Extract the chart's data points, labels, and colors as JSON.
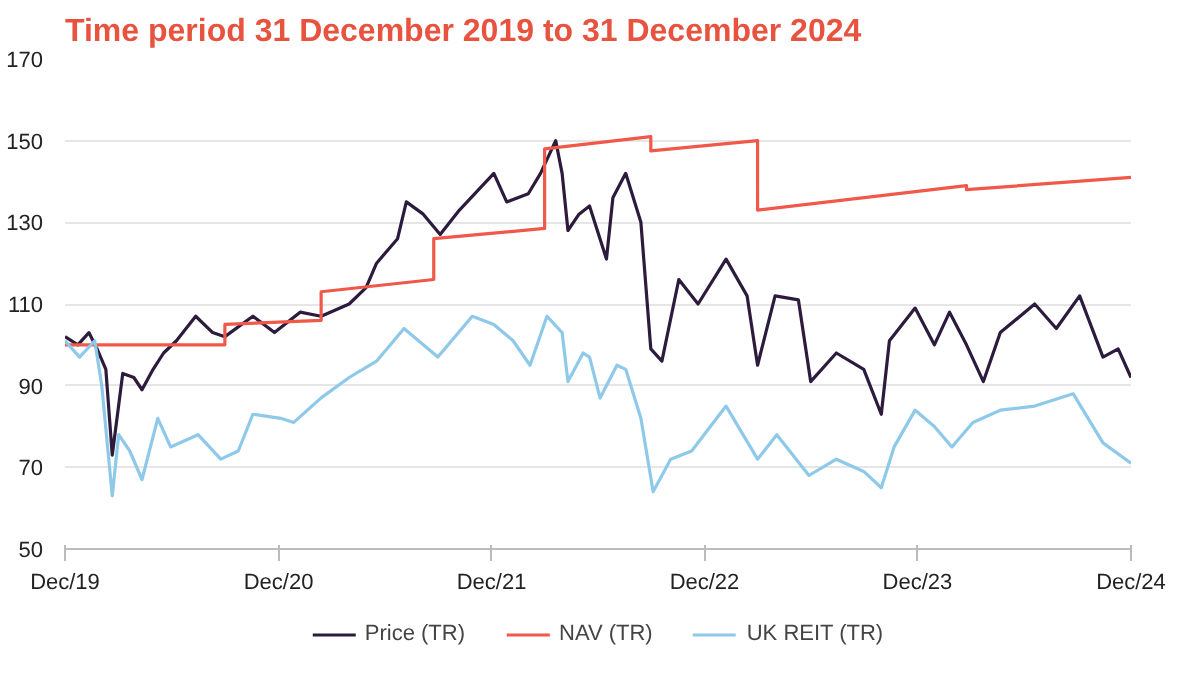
{
  "chart_data": {
    "type": "line",
    "title": "Time period 31 December 2019 to 31 December 2024",
    "xlim": [
      "2019-12-31",
      "2024-12-31"
    ],
    "xticks": [
      {
        "value": "2019-12-31",
        "label": "Dec/19"
      },
      {
        "value": "2020-12-31",
        "label": "Dec/20"
      },
      {
        "value": "2021-12-31",
        "label": "Dec/21"
      },
      {
        "value": "2022-12-31",
        "label": "Dec/22"
      },
      {
        "value": "2023-12-31",
        "label": "Dec/23"
      },
      {
        "value": "2024-12-31",
        "label": "Dec/24"
      }
    ],
    "ylim": [
      50,
      170
    ],
    "yticks": [
      50,
      70,
      90,
      110,
      130,
      150,
      170
    ],
    "grid": "y",
    "legend": "bottom",
    "line_style": "solid",
    "marker": "none",
    "series": [
      {
        "name": "Price (TR)",
        "color": "#2d1b3d",
        "x": [
          "2019-12-31",
          "2020-01-22",
          "2020-02-10",
          "2020-02-24",
          "2020-03-10",
          "2020-03-21",
          "2020-04-08",
          "2020-04-27",
          "2020-05-11",
          "2020-05-30",
          "2020-06-17",
          "2020-07-09",
          "2020-08-11",
          "2020-09-09",
          "2020-09-30",
          "2020-11-17",
          "2020-12-24",
          "2021-02-06",
          "2021-03-14",
          "2021-05-01",
          "2021-05-30",
          "2021-06-17",
          "2021-07-23",
          "2021-08-07",
          "2021-09-05",
          "2021-10-04",
          "2021-11-06",
          "2022-01-04",
          "2022-01-26",
          "2022-03-04",
          "2022-03-25",
          "2022-04-20",
          "2022-05-01",
          "2022-05-11",
          "2022-05-30",
          "2022-06-17",
          "2022-07-16",
          "2022-07-27",
          "2022-08-18",
          "2022-09-13",
          "2022-09-30",
          "2022-10-19",
          "2022-11-17",
          "2022-12-20",
          "2023-02-06",
          "2023-03-14",
          "2023-04-01",
          "2023-05-01",
          "2023-06-10",
          "2023-07-01",
          "2023-08-14",
          "2023-09-30",
          "2023-10-30",
          "2023-11-13",
          "2023-12-27",
          "2024-01-29",
          "2024-02-24",
          "2024-03-24",
          "2024-04-22",
          "2024-05-21",
          "2024-07-19",
          "2024-08-25",
          "2024-10-04",
          "2024-11-13",
          "2024-12-09",
          "2024-12-31"
        ],
        "values": [
          102,
          100,
          103,
          99,
          94,
          73,
          93,
          92,
          89,
          94,
          98,
          101,
          107,
          103,
          102,
          107,
          103,
          108,
          107,
          110,
          114,
          120,
          126,
          135,
          132,
          127,
          133,
          142,
          135,
          137,
          142,
          150,
          142,
          128,
          132,
          134,
          121,
          136,
          142,
          130,
          99,
          96,
          116,
          110,
          121,
          112,
          95,
          112,
          111,
          91,
          98,
          94,
          83,
          101,
          109,
          100,
          108,
          100,
          91,
          103,
          110,
          104,
          112,
          97,
          99,
          92
        ]
      },
      {
        "name": "NAV (TR)",
        "color": "#f0584a",
        "x": [
          "2019-12-31",
          "2020-09-30",
          "2020-09-30",
          "2021-03-14",
          "2021-03-14",
          "2021-09-23",
          "2021-09-23",
          "2022-04-01",
          "2022-04-01",
          "2022-09-30",
          "2022-09-30",
          "2023-04-01",
          "2023-04-01",
          "2024-03-24",
          "2024-03-24",
          "2024-12-31"
        ],
        "values": [
          100,
          100,
          105,
          106,
          113,
          116,
          126,
          128.5,
          148,
          151,
          147.5,
          150,
          133,
          139,
          138,
          141
        ]
      },
      {
        "name": "UK REIT (TR)",
        "color": "#8ec9ea",
        "x": [
          "2019-12-31",
          "2020-01-25",
          "2020-02-20",
          "2020-03-03",
          "2020-03-21",
          "2020-04-01",
          "2020-04-20",
          "2020-05-11",
          "2020-06-07",
          "2020-06-29",
          "2020-08-15",
          "2020-09-23",
          "2020-10-23",
          "2020-11-17",
          "2021-01-04",
          "2021-01-26",
          "2021-03-14",
          "2021-05-01",
          "2021-06-17",
          "2021-08-03",
          "2021-09-30",
          "2021-11-28",
          "2022-01-04",
          "2022-02-06",
          "2022-03-07",
          "2022-04-05",
          "2022-05-01",
          "2022-05-11",
          "2022-06-06",
          "2022-06-17",
          "2022-07-05",
          "2022-08-03",
          "2022-08-18",
          "2022-09-13",
          "2022-10-04",
          "2022-11-03",
          "2022-12-09",
          "2023-02-06",
          "2023-04-01",
          "2023-05-04",
          "2023-06-28",
          "2023-08-14",
          "2023-09-30",
          "2023-10-30",
          "2023-11-21",
          "2023-12-27",
          "2024-01-29",
          "2024-02-28",
          "2024-04-04",
          "2024-05-21",
          "2024-07-19",
          "2024-09-23",
          "2024-11-13",
          "2024-12-31"
        ],
        "values": [
          101,
          97,
          101,
          90,
          63,
          78,
          74,
          67,
          82,
          75,
          78,
          72,
          74,
          83,
          82,
          81,
          87,
          92,
          96,
          104,
          97,
          107,
          105,
          101,
          95,
          107,
          103,
          91,
          98,
          97,
          87,
          95,
          94,
          82,
          64,
          72,
          74,
          85,
          72,
          78,
          68,
          72,
          69,
          65,
          75,
          84,
          80,
          75,
          81,
          84,
          85,
          88,
          76,
          71
        ]
      }
    ]
  }
}
